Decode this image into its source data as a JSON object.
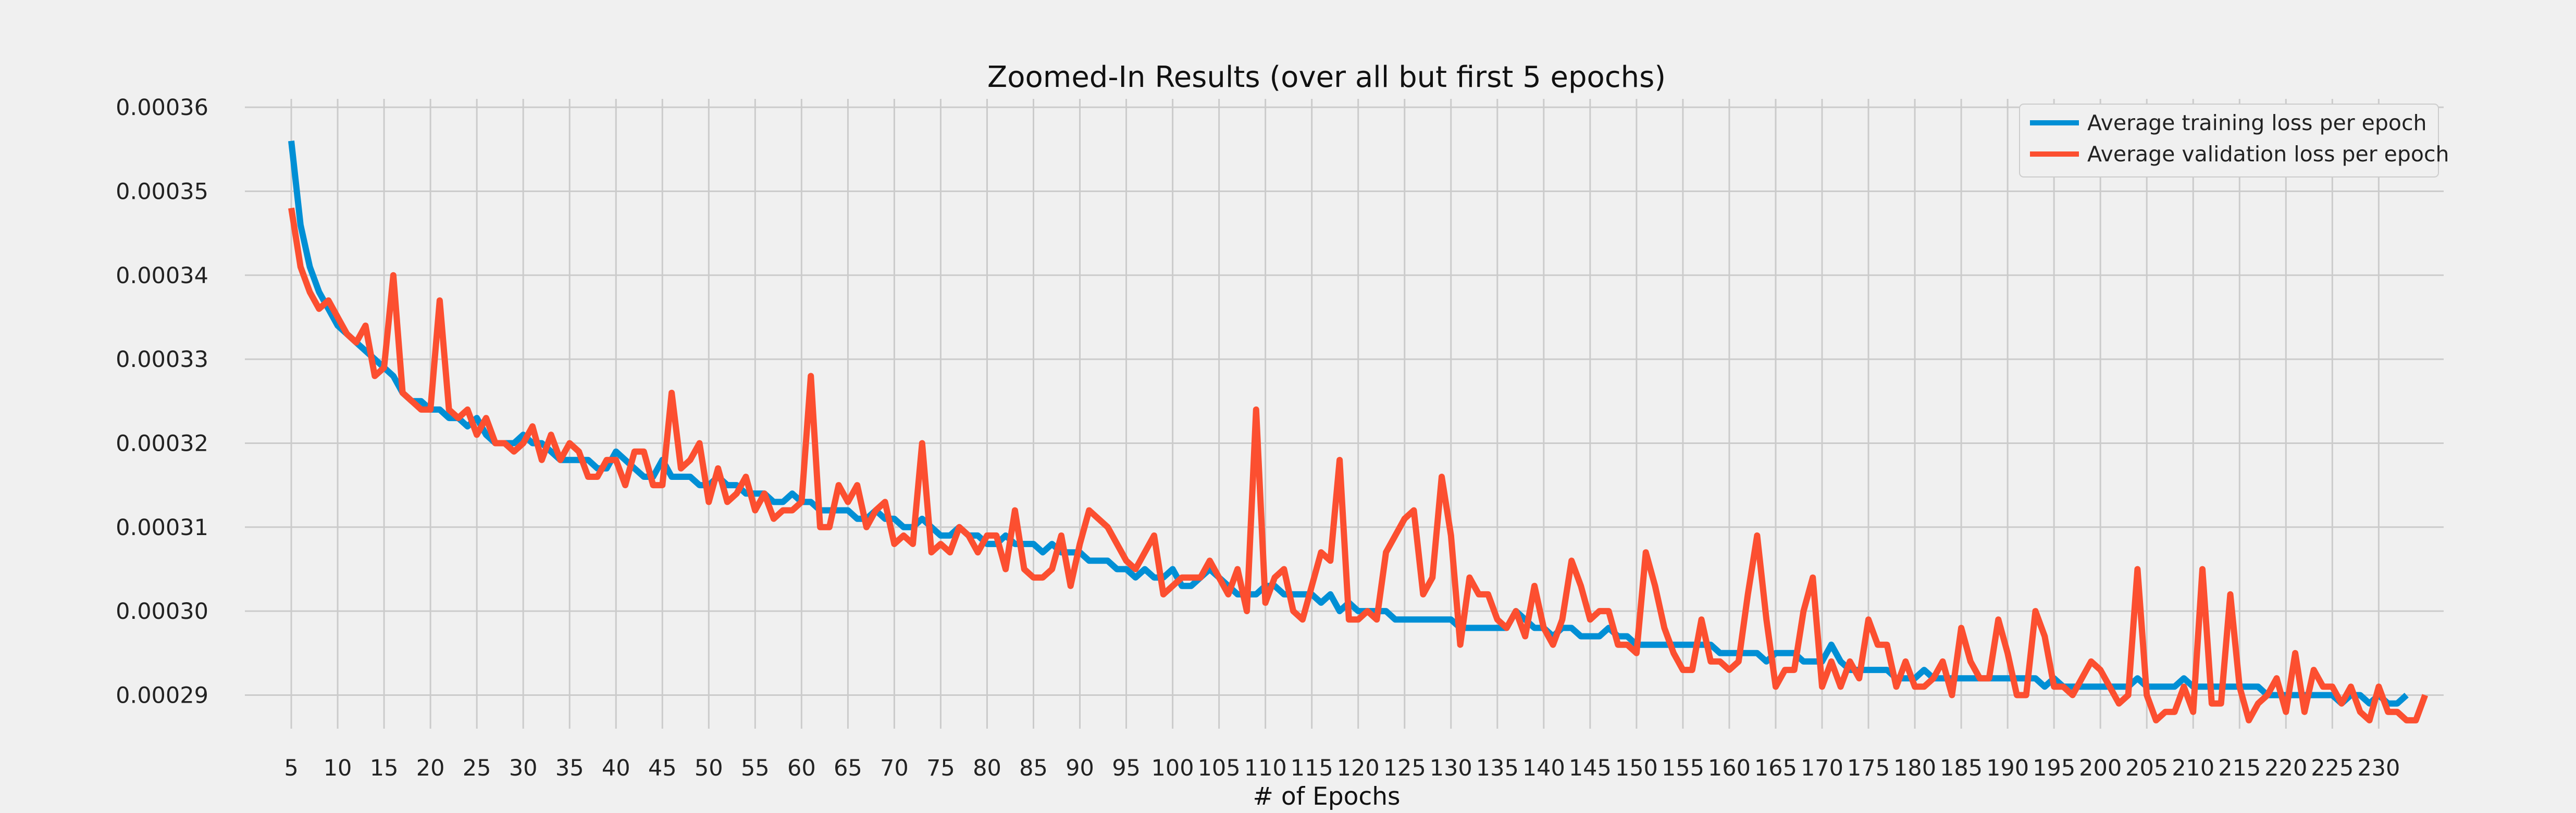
{
  "chart_data": {
    "type": "line",
    "title": "Zoomed-In Results (over all but first 5 epochs)",
    "xlabel": "# of Epochs",
    "ylabel": "",
    "xlim": [
      0,
      237
    ],
    "ylim": [
      0.000286,
      0.000361
    ],
    "x_ticks": [
      5,
      10,
      15,
      20,
      25,
      30,
      35,
      40,
      45,
      50,
      55,
      60,
      65,
      70,
      75,
      80,
      85,
      90,
      95,
      100,
      105,
      110,
      115,
      120,
      125,
      130,
      135,
      140,
      145,
      150,
      155,
      160,
      165,
      170,
      175,
      180,
      185,
      190,
      195,
      200,
      205,
      210,
      215,
      220,
      225,
      230
    ],
    "y_ticks": [
      "0.00029",
      "0.00030",
      "0.00031",
      "0.00032",
      "0.00033",
      "0.00034",
      "0.00035",
      "0.00036"
    ],
    "y_tick_values": [
      0.00029,
      0.0003,
      0.00031,
      0.00032,
      0.00033,
      0.00034,
      0.00035,
      0.00036
    ],
    "grid": true,
    "legend_position": "top-right",
    "x_start": 5,
    "series": [
      {
        "name": "Average training loss per epoch",
        "color": "#008fd5",
        "values": [
          0.000356,
          0.000346,
          0.000341,
          0.000338,
          0.000336,
          0.000334,
          0.000333,
          0.000332,
          0.000331,
          0.00033,
          0.000329,
          0.000328,
          0.000326,
          0.000325,
          0.000325,
          0.000324,
          0.000324,
          0.000323,
          0.000323,
          0.000322,
          0.000323,
          0.000321,
          0.00032,
          0.00032,
          0.00032,
          0.000321,
          0.00032,
          0.00032,
          0.000319,
          0.000318,
          0.000318,
          0.000318,
          0.000318,
          0.000317,
          0.000317,
          0.000319,
          0.000318,
          0.000317,
          0.000316,
          0.000316,
          0.000318,
          0.000316,
          0.000316,
          0.000316,
          0.000315,
          0.000315,
          0.000316,
          0.000315,
          0.000315,
          0.000314,
          0.000314,
          0.000314,
          0.000313,
          0.000313,
          0.000314,
          0.000313,
          0.000313,
          0.000312,
          0.000312,
          0.000312,
          0.000312,
          0.000311,
          0.000311,
          0.000312,
          0.000311,
          0.000311,
          0.00031,
          0.00031,
          0.000311,
          0.00031,
          0.000309,
          0.000309,
          0.00031,
          0.000309,
          0.000309,
          0.000308,
          0.000308,
          0.000309,
          0.000308,
          0.000308,
          0.000308,
          0.000307,
          0.000308,
          0.000307,
          0.000307,
          0.000307,
          0.000306,
          0.000306,
          0.000306,
          0.000305,
          0.000305,
          0.000304,
          0.000305,
          0.000304,
          0.000304,
          0.000305,
          0.000303,
          0.000303,
          0.000304,
          0.000305,
          0.000304,
          0.000303,
          0.000302,
          0.000302,
          0.000302,
          0.000303,
          0.000303,
          0.000302,
          0.000302,
          0.000302,
          0.000302,
          0.000301,
          0.000302,
          0.0003,
          0.000301,
          0.0003,
          0.0003,
          0.0003,
          0.0003,
          0.000299,
          0.000299,
          0.000299,
          0.000299,
          0.000299,
          0.000299,
          0.000299,
          0.000298,
          0.000298,
          0.000298,
          0.000298,
          0.000298,
          0.000298,
          0.0003,
          0.000299,
          0.000298,
          0.000298,
          0.000297,
          0.000298,
          0.000298,
          0.000297,
          0.000297,
          0.000297,
          0.000298,
          0.000297,
          0.000297,
          0.000296,
          0.000296,
          0.000296,
          0.000296,
          0.000296,
          0.000296,
          0.000296,
          0.000296,
          0.000296,
          0.000295,
          0.000295,
          0.000295,
          0.000295,
          0.000295,
          0.000294,
          0.000295,
          0.000295,
          0.000295,
          0.000294,
          0.000294,
          0.000294,
          0.000296,
          0.000294,
          0.000293,
          0.000293,
          0.000293,
          0.000293,
          0.000293,
          0.000292,
          0.000292,
          0.000292,
          0.000293,
          0.000292,
          0.000292,
          0.000292,
          0.000292,
          0.000292,
          0.000292,
          0.000292,
          0.000292,
          0.000292,
          0.000292,
          0.000292,
          0.000292,
          0.000291,
          0.000292,
          0.000291,
          0.000291,
          0.000291,
          0.000291,
          0.000291,
          0.000291,
          0.000291,
          0.000291,
          0.000292,
          0.000291,
          0.000291,
          0.000291,
          0.000291,
          0.000292,
          0.000291,
          0.000291,
          0.000291,
          0.000291,
          0.000291,
          0.000291,
          0.000291,
          0.000291,
          0.00029,
          0.00029,
          0.00029,
          0.00029,
          0.00029,
          0.00029,
          0.00029,
          0.00029,
          0.000289,
          0.00029,
          0.00029,
          0.000289,
          0.00029,
          0.000289,
          0.000289,
          0.00029
        ]
      },
      {
        "name": "Average validation loss per epoch",
        "color": "#fc4f30",
        "values": [
          0.000348,
          0.000341,
          0.000338,
          0.000336,
          0.000337,
          0.000335,
          0.000333,
          0.000332,
          0.000334,
          0.000328,
          0.000329,
          0.00034,
          0.000326,
          0.000325,
          0.000324,
          0.000324,
          0.000337,
          0.000324,
          0.000323,
          0.000324,
          0.000321,
          0.000323,
          0.00032,
          0.00032,
          0.000319,
          0.00032,
          0.000322,
          0.000318,
          0.000321,
          0.000318,
          0.00032,
          0.000319,
          0.000316,
          0.000316,
          0.000318,
          0.000318,
          0.000315,
          0.000319,
          0.000319,
          0.000315,
          0.000315,
          0.000326,
          0.000317,
          0.000318,
          0.00032,
          0.000313,
          0.000317,
          0.000313,
          0.000314,
          0.000316,
          0.000312,
          0.000314,
          0.000311,
          0.000312,
          0.000312,
          0.000313,
          0.000328,
          0.00031,
          0.00031,
          0.000315,
          0.000313,
          0.000315,
          0.00031,
          0.000312,
          0.000313,
          0.000308,
          0.000309,
          0.000308,
          0.00032,
          0.000307,
          0.000308,
          0.000307,
          0.00031,
          0.000309,
          0.000307,
          0.000309,
          0.000309,
          0.000305,
          0.000312,
          0.000305,
          0.000304,
          0.000304,
          0.000305,
          0.000309,
          0.000303,
          0.000308,
          0.000312,
          0.000311,
          0.00031,
          0.000308,
          0.000306,
          0.000305,
          0.000307,
          0.000309,
          0.000302,
          0.000303,
          0.000304,
          0.000304,
          0.000304,
          0.000306,
          0.000304,
          0.000302,
          0.000305,
          0.0003,
          0.000324,
          0.000301,
          0.000304,
          0.000305,
          0.0003,
          0.000299,
          0.000303,
          0.000307,
          0.000306,
          0.000318,
          0.000299,
          0.000299,
          0.0003,
          0.000299,
          0.000307,
          0.000309,
          0.000311,
          0.000312,
          0.000302,
          0.000304,
          0.000316,
          0.000309,
          0.000296,
          0.000304,
          0.000302,
          0.000302,
          0.000299,
          0.000298,
          0.0003,
          0.000297,
          0.000303,
          0.000298,
          0.000296,
          0.000299,
          0.000306,
          0.000303,
          0.000299,
          0.0003,
          0.0003,
          0.000296,
          0.000296,
          0.000295,
          0.000307,
          0.000303,
          0.000298,
          0.000295,
          0.000293,
          0.000293,
          0.000299,
          0.000294,
          0.000294,
          0.000293,
          0.000294,
          0.000302,
          0.000309,
          0.000299,
          0.000291,
          0.000293,
          0.000293,
          0.0003,
          0.000304,
          0.000291,
          0.000294,
          0.000291,
          0.000294,
          0.000292,
          0.000299,
          0.000296,
          0.000296,
          0.000291,
          0.000294,
          0.000291,
          0.000291,
          0.000292,
          0.000294,
          0.00029,
          0.000298,
          0.000294,
          0.000292,
          0.000292,
          0.000299,
          0.000295,
          0.00029,
          0.00029,
          0.0003,
          0.000297,
          0.000291,
          0.000291,
          0.00029,
          0.000292,
          0.000294,
          0.000293,
          0.000291,
          0.000289,
          0.00029,
          0.000305,
          0.00029,
          0.000287,
          0.000288,
          0.000288,
          0.000291,
          0.000288,
          0.000305,
          0.000289,
          0.000289,
          0.000302,
          0.000291,
          0.000287,
          0.000289,
          0.00029,
          0.000292,
          0.000288,
          0.000295,
          0.000288,
          0.000293,
          0.000291,
          0.000291,
          0.000289,
          0.000291,
          0.000288,
          0.000287,
          0.000291,
          0.000288,
          0.000288,
          0.000287,
          0.000287,
          0.00029
        ]
      }
    ]
  }
}
